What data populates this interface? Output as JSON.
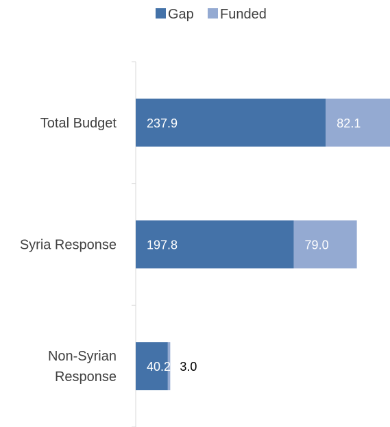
{
  "chart_data": {
    "type": "bar",
    "orientation": "horizontal",
    "stacked": true,
    "categories": [
      [
        "Total Budget"
      ],
      [
        "Syria Response"
      ],
      [
        "Non-Syrian",
        "Response"
      ]
    ],
    "series": [
      {
        "name": "Gap",
        "color": "#4472a8",
        "values": [
          237.9,
          197.8,
          40.2
        ]
      },
      {
        "name": "Funded",
        "color": "#94aad2",
        "values": [
          82.1,
          79.0,
          3.0
        ]
      }
    ],
    "xlim": [
      0,
      320
    ],
    "grid": false,
    "legend": "top"
  }
}
